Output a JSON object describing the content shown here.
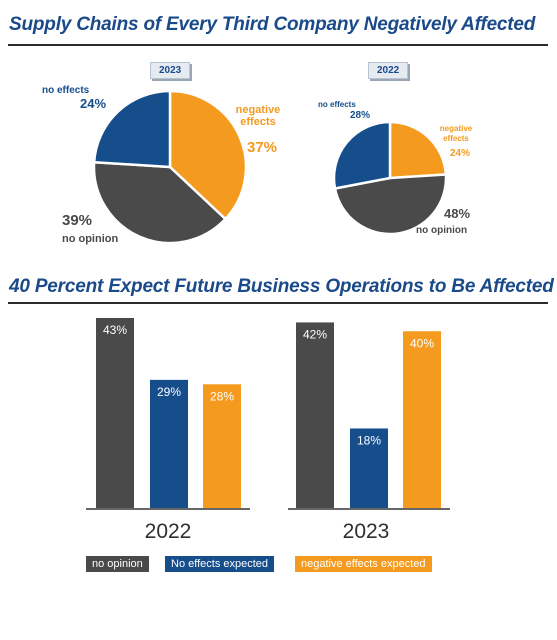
{
  "section1": {
    "title": "Supply Chains of Every Third Company Negatively Affected"
  },
  "section2": {
    "title": "40 Percent Expect Future Business Operations to Be Affected"
  },
  "colors": {
    "no_opinion": "#4a4a4a",
    "no_effects": "#164e8c",
    "negative": "#f39a1f",
    "title": "#1a4a8a"
  },
  "chart_data": [
    {
      "type": "pie",
      "label": "2023",
      "slices": [
        {
          "name": "negative effects",
          "value": 37,
          "label_lines": [
            "negative",
            "effects"
          ],
          "value_text": "37%"
        },
        {
          "name": "no opinion",
          "value": 39,
          "label_lines": [
            "no opinion"
          ],
          "value_text": "39%"
        },
        {
          "name": "no effects",
          "value": 24,
          "label_lines": [
            "no effects"
          ],
          "value_text": "24%"
        }
      ]
    },
    {
      "type": "pie",
      "label": "2022",
      "slices": [
        {
          "name": "negative effects",
          "value": 24,
          "label_lines": [
            "negative",
            "effects"
          ],
          "value_text": "24%"
        },
        {
          "name": "no opinion",
          "value": 48,
          "label_lines": [
            "no opinion"
          ],
          "value_text": "48%"
        },
        {
          "name": "no effects",
          "value": 28,
          "label_lines": [
            "no effects"
          ],
          "value_text": "28%"
        }
      ]
    },
    {
      "type": "bar",
      "categories": [
        "2022",
        "2023"
      ],
      "ylim": [
        0,
        43
      ],
      "series": [
        {
          "name": "no opinion",
          "values": [
            43,
            42
          ],
          "value_labels": [
            "43%",
            "42%"
          ]
        },
        {
          "name": "No effects expected",
          "values": [
            29,
            18
          ],
          "value_labels": [
            "29%",
            "18%"
          ]
        },
        {
          "name": "negative effects expected",
          "values": [
            28,
            40
          ],
          "value_labels": [
            "28%",
            "40%"
          ]
        }
      ],
      "legend": [
        {
          "label": "no opinion"
        },
        {
          "label": "No effects expected"
        },
        {
          "label": "negative effects expected"
        }
      ],
      "legend_position": "bottom"
    }
  ]
}
